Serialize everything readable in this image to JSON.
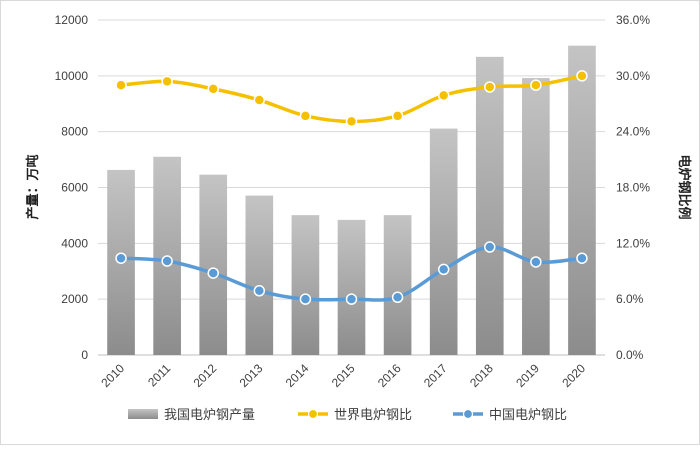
{
  "chart_data": {
    "type": "bar+line",
    "categories": [
      "2010",
      "2011",
      "2012",
      "2013",
      "2014",
      "2015",
      "2016",
      "2017",
      "2018",
      "2019",
      "2020"
    ],
    "series": [
      {
        "name": "我国电炉钢产量",
        "type": "bar",
        "axis": "left",
        "color": "#a6a6a6",
        "values": [
          6630,
          7100,
          6460,
          5710,
          5010,
          4840,
          5010,
          8110,
          10680,
          9920,
          11080
        ]
      },
      {
        "name": "世界电炉钢比",
        "type": "line",
        "axis": "right",
        "color": "#f5c000",
        "values": [
          29.0,
          29.4,
          28.6,
          27.4,
          25.7,
          25.1,
          25.7,
          27.9,
          28.8,
          29.0,
          30.0
        ]
      },
      {
        "name": "中国电炉钢比",
        "type": "line",
        "axis": "right",
        "color": "#5b9bd5",
        "values": [
          10.4,
          10.1,
          8.8,
          6.9,
          6.0,
          6.0,
          6.2,
          9.2,
          11.6,
          10.0,
          10.4
        ]
      }
    ],
    "ylabel": "产量：万吨",
    "y2label": "电炉钢比例",
    "ylim": [
      0,
      12000
    ],
    "y2lim": [
      0,
      36
    ],
    "yticks": [
      "0",
      "2000",
      "4000",
      "6000",
      "8000",
      "10000",
      "12000"
    ],
    "y2ticks": [
      "0.0%",
      "6.0%",
      "12.0%",
      "18.0%",
      "24.0%",
      "30.0%",
      "36.0%"
    ],
    "grid": true,
    "legend_position": "bottom"
  }
}
